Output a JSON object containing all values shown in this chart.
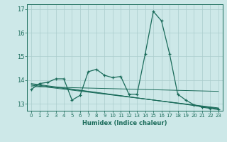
{
  "xlabel": "Humidex (Indice chaleur)",
  "xlim": [
    -0.5,
    23.5
  ],
  "ylim": [
    12.7,
    17.2
  ],
  "yticks": [
    13,
    14,
    15,
    16,
    17
  ],
  "xticks": [
    0,
    1,
    2,
    3,
    4,
    5,
    6,
    7,
    8,
    9,
    10,
    11,
    12,
    13,
    14,
    15,
    16,
    17,
    18,
    19,
    20,
    21,
    22,
    23
  ],
  "bg_color": "#cde8e8",
  "line_color": "#1a6b5a",
  "grid_color": "#aacccc",
  "main_series": [
    13.6,
    13.85,
    13.9,
    14.05,
    14.05,
    13.15,
    13.35,
    14.35,
    14.45,
    14.2,
    14.1,
    14.15,
    13.4,
    13.4,
    15.1,
    16.9,
    16.5,
    15.1,
    13.4,
    13.15,
    12.95,
    12.85,
    12.8,
    12.75
  ],
  "trend_lines": [
    {
      "x0": 0,
      "y0": 13.85,
      "x1": 23,
      "y1": 12.78
    },
    {
      "x0": 0,
      "y0": 13.85,
      "x1": 23,
      "y1": 12.82
    },
    {
      "x0": 0,
      "y0": 13.85,
      "x1": 23,
      "y1": 12.88
    },
    {
      "x0": 0,
      "y0": 13.72,
      "x1": 23,
      "y1": 13.72
    }
  ]
}
